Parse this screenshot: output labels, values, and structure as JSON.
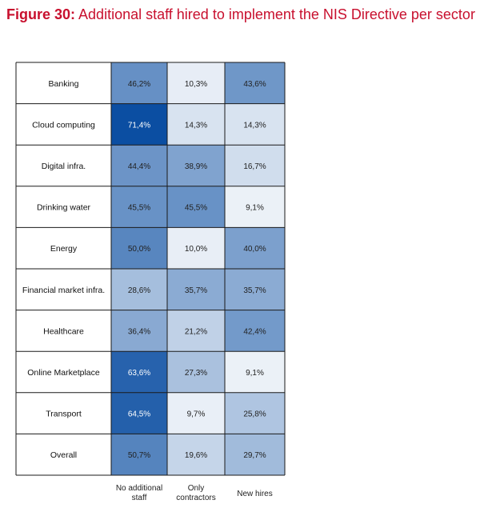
{
  "title": {
    "figure_label": "Figure 30:",
    "text": " Additional staff hired to implement the NIS Directive per sector"
  },
  "colors": {
    "title": "#c8102e",
    "border": "#1a1a1a",
    "low": "#ffffff",
    "high": "#0b4ea2"
  },
  "chart_data": {
    "type": "heatmap",
    "rows": [
      "Banking",
      "Cloud computing",
      "Digital infra.",
      "Drinking water",
      "Energy",
      "Financial market infra.",
      "Healthcare",
      "Online Marketplace",
      "Transport",
      "Overall"
    ],
    "columns": [
      "No additional staff",
      "Only contractors",
      "New hires"
    ],
    "column_lines": [
      [
        "No additional",
        "staff"
      ],
      [
        "Only",
        "contractors"
      ],
      [
        "New hires"
      ]
    ],
    "values": [
      [
        46.2,
        10.3,
        43.6
      ],
      [
        71.4,
        14.3,
        14.3
      ],
      [
        44.4,
        38.9,
        16.7
      ],
      [
        45.5,
        45.5,
        9.1
      ],
      [
        50.0,
        10.0,
        40.0
      ],
      [
        28.6,
        35.7,
        35.7
      ],
      [
        36.4,
        21.2,
        42.4
      ],
      [
        63.6,
        27.3,
        9.1
      ],
      [
        64.5,
        9.7,
        25.8
      ],
      [
        50.7,
        19.6,
        29.7
      ]
    ],
    "labels": [
      [
        "46,2%",
        "10,3%",
        "43,6%"
      ],
      [
        "71,4%",
        "14,3%",
        "14,3%"
      ],
      [
        "44,4%",
        "38,9%",
        "16,7%"
      ],
      [
        "45,5%",
        "45,5%",
        "9,1%"
      ],
      [
        "50,0%",
        "10,0%",
        "40,0%"
      ],
      [
        "28,6%",
        "35,7%",
        "35,7%"
      ],
      [
        "36,4%",
        "21,2%",
        "42,4%"
      ],
      [
        "63,6%",
        "27,3%",
        "9,1%"
      ],
      [
        "64,5%",
        "9,7%",
        "25,8%"
      ],
      [
        "50,7%",
        "19,6%",
        "29,7%"
      ]
    ]
  }
}
